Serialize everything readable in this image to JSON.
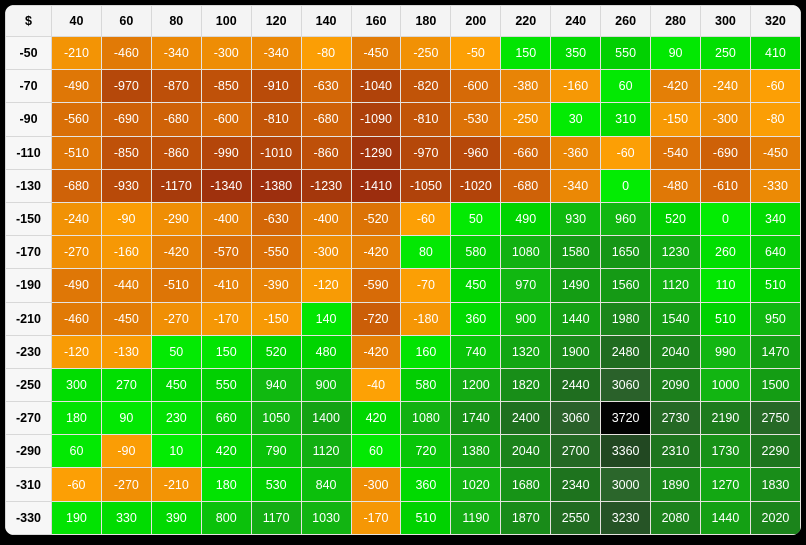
{
  "chart_data": {
    "type": "heatmap",
    "corner_label": "$",
    "x_categories": [
      "40",
      "60",
      "80",
      "100",
      "120",
      "140",
      "160",
      "180",
      "200",
      "220",
      "240",
      "260",
      "280",
      "300",
      "320"
    ],
    "y_categories": [
      "-50",
      "-70",
      "-90",
      "-110",
      "-130",
      "-150",
      "-170",
      "-190",
      "-210",
      "-230",
      "-250",
      "-270",
      "-290",
      "-310",
      "-330"
    ],
    "values": [
      [
        -210,
        -460,
        -340,
        -300,
        -340,
        -80,
        -450,
        -250,
        -50,
        150,
        350,
        550,
        90,
        250,
        410
      ],
      [
        -490,
        -970,
        -870,
        -850,
        -910,
        -630,
        -1040,
        -820,
        -600,
        -380,
        -160,
        60,
        -420,
        -240,
        -60
      ],
      [
        -560,
        -690,
        -680,
        -600,
        -810,
        -680,
        -1090,
        -810,
        -530,
        -250,
        30,
        310,
        -150,
        -300,
        -80
      ],
      [
        -510,
        -850,
        -860,
        -990,
        -1010,
        -860,
        -1290,
        -970,
        -960,
        -660,
        -360,
        -60,
        -540,
        -690,
        -450
      ],
      [
        -680,
        -930,
        -1170,
        -1340,
        -1380,
        -1230,
        -1410,
        -1050,
        -1020,
        -680,
        -340,
        0,
        -480,
        -610,
        -330
      ],
      [
        -240,
        -90,
        -290,
        -400,
        -630,
        -400,
        -520,
        -60,
        50,
        490,
        930,
        960,
        520,
        0,
        340
      ],
      [
        -270,
        -160,
        -420,
        -570,
        -550,
        -300,
        -420,
        80,
        580,
        1080,
        1580,
        1650,
        1230,
        260,
        640
      ],
      [
        -490,
        -440,
        -510,
        -410,
        -390,
        -120,
        -590,
        -70,
        450,
        970,
        1490,
        1560,
        1120,
        110,
        510
      ],
      [
        -460,
        -450,
        -270,
        -170,
        -150,
        140,
        -720,
        -180,
        360,
        900,
        1440,
        1980,
        1540,
        510,
        950
      ],
      [
        -120,
        -130,
        50,
        150,
        520,
        480,
        -420,
        160,
        740,
        1320,
        1900,
        2480,
        2040,
        990,
        1470
      ],
      [
        300,
        270,
        450,
        550,
        940,
        900,
        -40,
        580,
        1200,
        1820,
        2440,
        3060,
        2090,
        1000,
        1500
      ],
      [
        180,
        90,
        230,
        660,
        1050,
        1400,
        420,
        1080,
        1740,
        2400,
        3060,
        3720,
        2730,
        2190,
        2750
      ],
      [
        60,
        -90,
        10,
        420,
        790,
        1120,
        60,
        720,
        1380,
        2040,
        2700,
        3360,
        2310,
        1730,
        2290
      ],
      [
        -60,
        -270,
        -210,
        180,
        530,
        840,
        -300,
        360,
        1020,
        1680,
        2340,
        3000,
        1890,
        1270,
        1830
      ],
      [
        190,
        330,
        390,
        800,
        1170,
        1030,
        -170,
        510,
        1190,
        1870,
        2550,
        3230,
        2080,
        1440,
        2020
      ]
    ],
    "value_range": [
      -1410,
      3720
    ],
    "legend_position": "none",
    "grid": true,
    "colors": {
      "cell_text": "#ffffff",
      "header_text": "#000000",
      "header_bg": "#f4f4f4",
      "row_label_bg": "#f7f7f7",
      "frame_bg": "#000000",
      "panel_bg": "#ffffff",
      "negative_stops": [
        [
          -1410,
          "#9C2D0E"
        ],
        [
          -1200,
          "#A5390C"
        ],
        [
          -900,
          "#BA4C09"
        ],
        [
          -600,
          "#D66A07"
        ],
        [
          -300,
          "#EE8D05"
        ],
        [
          -1,
          "#FFA405"
        ]
      ],
      "positive_stops": [
        [
          0,
          "#03EC03"
        ],
        [
          500,
          "#00D300"
        ],
        [
          1000,
          "#12B512"
        ],
        [
          1500,
          "#149D14"
        ],
        [
          2000,
          "#1B851B"
        ],
        [
          2500,
          "#206B20"
        ],
        [
          3000,
          "#2B662B"
        ],
        [
          3350,
          "#234A23"
        ],
        [
          3720,
          "#020202"
        ]
      ]
    }
  }
}
